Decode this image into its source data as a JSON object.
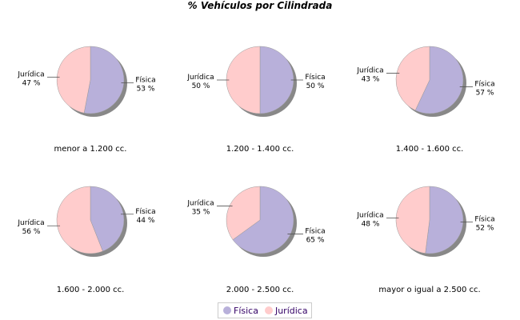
{
  "chart_data": {
    "type": "pie",
    "title": "% Vehículos por Cilindrada",
    "series_names": [
      "Física",
      "Jurídica"
    ],
    "colors": {
      "Física": "#b8b0da",
      "Jurídica": "#ffcccc"
    },
    "legend_position": "bottom",
    "pies": [
      {
        "caption": "menor a 1.200 cc.",
        "values": [
          53,
          47
        ]
      },
      {
        "caption": "1.200 - 1.400 cc.",
        "values": [
          50,
          50
        ]
      },
      {
        "caption": "1.400 - 1.600 cc.",
        "values": [
          57,
          43
        ]
      },
      {
        "caption": "1.600 - 2.000 cc.",
        "values": [
          44,
          56
        ]
      },
      {
        "caption": "2.000 - 2.500 cc.",
        "values": [
          65,
          35
        ]
      },
      {
        "caption": "mayor o igual a 2.500 cc.",
        "values": [
          52,
          48
        ]
      }
    ]
  },
  "legend": {
    "fisica": "Física",
    "juridica": "Jurídica"
  }
}
